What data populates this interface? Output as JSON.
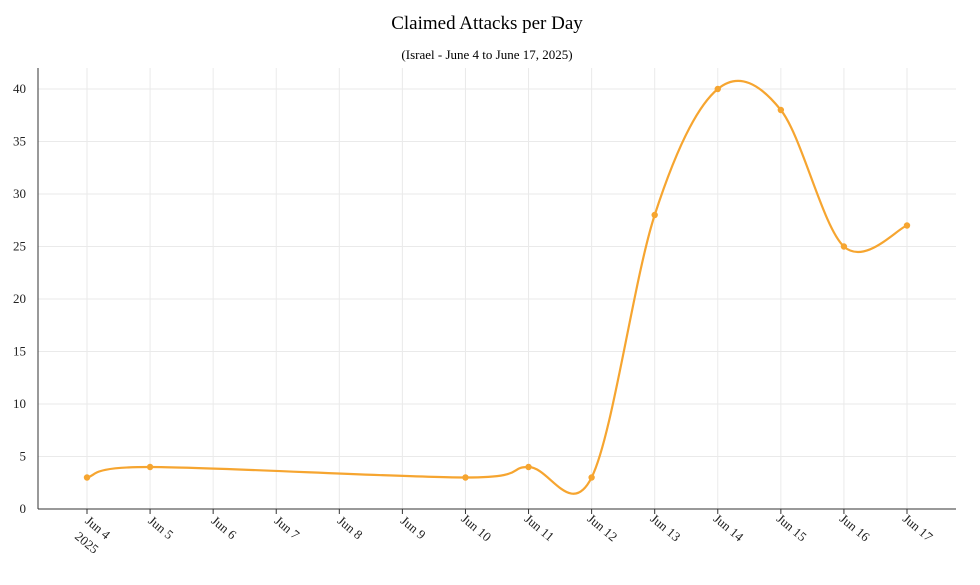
{
  "chart_data": {
    "type": "line",
    "title": "Claimed Attacks per Day",
    "subtitle": "(Israel - June 4 to June 17, 2025)",
    "xlabel": "",
    "ylabel": "",
    "x": [
      "2025-06-04",
      "2025-06-05",
      "2025-06-06",
      "2025-06-07",
      "2025-06-08",
      "2025-06-09",
      "2025-06-10",
      "2025-06-11",
      "2025-06-12",
      "2025-06-13",
      "2025-06-14",
      "2025-06-15",
      "2025-06-16",
      "2025-06-17"
    ],
    "x_tick_labels": [
      "Jun 4",
      "Jun 5",
      "Jun 6",
      "Jun 7",
      "Jun 8",
      "Jun 9",
      "Jun 10",
      "Jun 11",
      "Jun 12",
      "Jun 13",
      "Jun 14",
      "Jun 15",
      "Jun 16",
      "Jun 17"
    ],
    "first_tick_year": "2025",
    "series": [
      {
        "x": [
          "2025-06-04",
          "2025-06-05",
          "2025-06-10",
          "2025-06-11",
          "2025-06-12",
          "2025-06-13",
          "2025-06-14",
          "2025-06-15",
          "2025-06-16",
          "2025-06-17"
        ],
        "values": [
          3,
          4,
          3,
          4,
          3,
          28,
          40,
          38,
          25,
          27
        ],
        "color": "#f6a530"
      }
    ],
    "ylim": [
      0,
      42
    ],
    "y_ticks": [
      0,
      5,
      10,
      15,
      20,
      25,
      30,
      35,
      40
    ],
    "grid": true,
    "legend": "none"
  }
}
